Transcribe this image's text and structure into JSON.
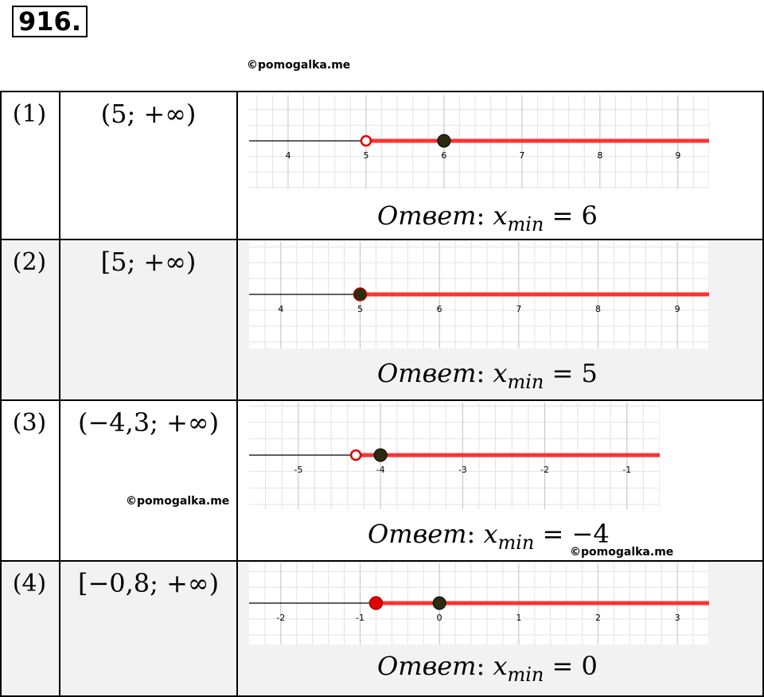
{
  "problem_number": "916.",
  "watermark": "©pomogalka.me",
  "answer_word": "Ответ",
  "answer_var": "x",
  "answer_sub": "min",
  "rows": [
    {
      "num": "(1)",
      "interval": "(5; +∞)",
      "axis": {
        "ticks": [
          "4",
          "5",
          "6",
          "7",
          "8",
          "9"
        ],
        "tick_values": [
          4,
          5,
          6,
          7,
          8,
          9
        ],
        "xmin": 3.5,
        "xmax": 9.4
      },
      "boundary": {
        "value": 5,
        "style": "open",
        "color": "#e00000"
      },
      "point": {
        "value": 6,
        "color": "#2b2b10"
      },
      "answer_value": "6"
    },
    {
      "num": "(2)",
      "interval": "[5; +∞)",
      "axis": {
        "ticks": [
          "4",
          "5",
          "6",
          "7",
          "8",
          "9"
        ],
        "tick_values": [
          4,
          5,
          6,
          7,
          8,
          9
        ],
        "xmin": 3.6,
        "xmax": 9.4
      },
      "boundary": {
        "value": 5,
        "style": "filled",
        "color": "#2b2b10"
      },
      "point": null,
      "answer_value": "5"
    },
    {
      "num": "(3)",
      "interval": "(−4,3; +∞)",
      "axis": {
        "ticks": [
          "-5",
          "-4",
          "-3",
          "-2",
          "-1"
        ],
        "tick_values": [
          -5,
          -4,
          -3,
          -2,
          -1
        ],
        "xmin": -5.6,
        "xmax": -0.6
      },
      "boundary": {
        "value": -4.3,
        "style": "open",
        "color": "#e00000"
      },
      "point": {
        "value": -4,
        "color": "#2b2b10"
      },
      "answer_value": "−4"
    },
    {
      "num": "(4)",
      "interval": "[−0,8; +∞)",
      "axis": {
        "ticks": [
          "-2",
          "-1",
          "0",
          "1",
          "2",
          "3"
        ],
        "tick_values": [
          -2,
          -1,
          0,
          1,
          2,
          3
        ],
        "xmin": -2.4,
        "xmax": 3.4
      },
      "boundary": {
        "value": -0.8,
        "style": "filled",
        "color": "#e00000"
      },
      "point": {
        "value": 0,
        "color": "#2b2b10"
      },
      "answer_value": "0"
    }
  ]
}
